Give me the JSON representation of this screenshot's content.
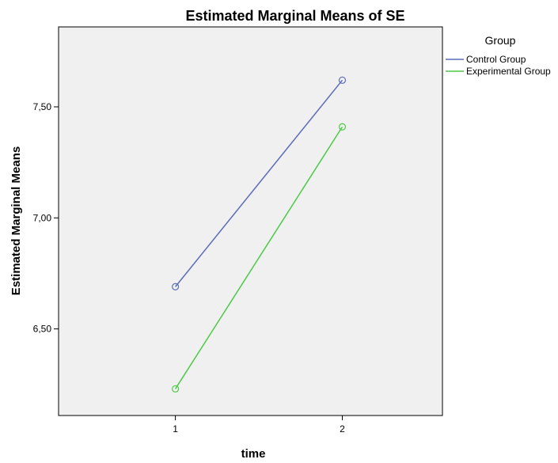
{
  "chart_data": {
    "type": "line",
    "title": "Estimated Marginal Means of SE",
    "xlabel": "time",
    "ylabel": "Estimated Marginal Means",
    "categories": [
      "1",
      "2"
    ],
    "x_range": [
      0.3,
      2.6
    ],
    "ylim": [
      6.11,
      7.86
    ],
    "yticks": [
      6.5,
      7.0,
      7.5
    ],
    "ytick_labels": [
      "6,50",
      "7,00",
      "7,50"
    ],
    "grid": false,
    "legend_title": "Group",
    "legend_position": "top-right",
    "series": [
      {
        "name": "Control Group",
        "color": "#5B6BB7",
        "values": [
          6.69,
          7.62
        ]
      },
      {
        "name": "Experimental Group",
        "color": "#4CC946",
        "values": [
          6.23,
          7.41
        ]
      }
    ]
  }
}
